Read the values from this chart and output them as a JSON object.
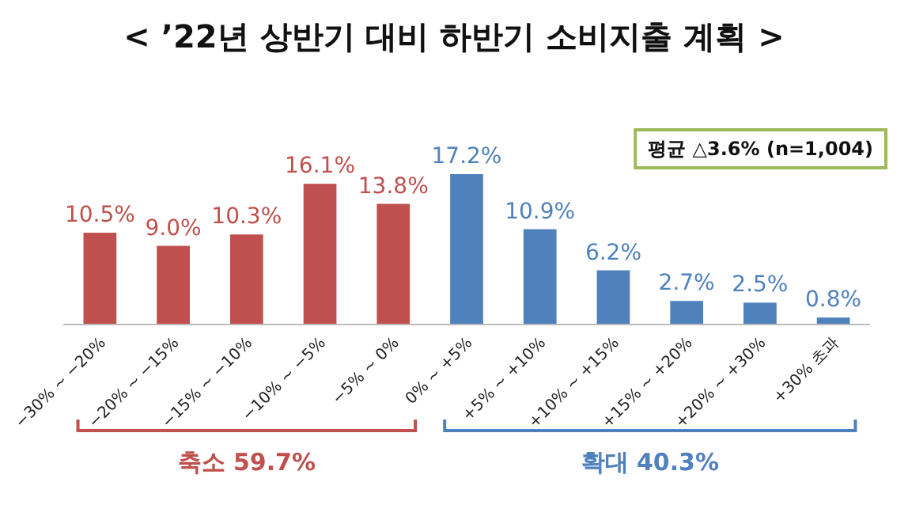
{
  "chart_data": {
    "type": "bar",
    "title": "< ’22년 상반기 대비 하반기 소비지출 계획 >",
    "categories": [
      "−30% ~ −20%",
      "−20% ~ −15%",
      "−15% ~ −10%",
      "−10% ~ −5%",
      "−5% ~ 0%",
      "0% ~ +5%",
      "+5% ~ +10%",
      "+10% ~ +15%",
      "+15% ~ +20%",
      "+20% ~ +30%",
      "+30% 초과"
    ],
    "values": [
      10.5,
      9.0,
      10.3,
      16.1,
      13.8,
      17.2,
      10.9,
      6.2,
      2.7,
      2.5,
      0.8
    ],
    "value_labels": [
      "10.5%",
      "9.0%",
      "10.3%",
      "16.1%",
      "13.8%",
      "17.2%",
      "10.9%",
      "6.2%",
      "2.7%",
      "2.5%",
      "0.8%"
    ],
    "colors": [
      "#c0504d",
      "#c0504d",
      "#c0504d",
      "#c0504d",
      "#c0504d",
      "#4f81bd",
      "#4f81bd",
      "#4f81bd",
      "#4f81bd",
      "#4f81bd",
      "#4f81bd"
    ],
    "annotations": [
      "평균 △3.6% (n=1,004)",
      "축소 59.7%",
      "확대 40.3%"
    ]
  }
}
